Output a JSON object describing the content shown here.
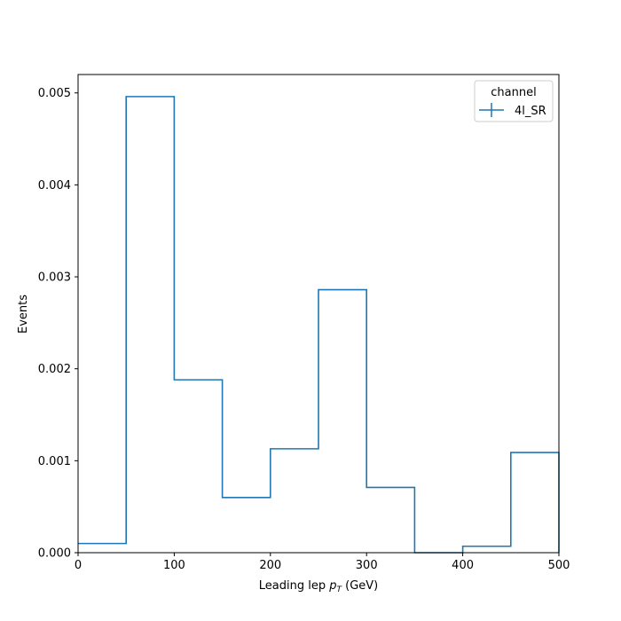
{
  "chart_data": {
    "type": "histogram-step",
    "xlabel_main": "Leading lep ",
    "xlabel_var": "p",
    "xlabel_sub": "T",
    "xlabel_unit": " (GeV)",
    "ylabel": "Events",
    "xlim": [
      0,
      500
    ],
    "ylim": [
      0,
      0.0052
    ],
    "bin_edges": [
      0,
      50,
      100,
      150,
      200,
      250,
      300,
      350,
      400,
      450,
      500
    ],
    "series": [
      {
        "name": "4l_SR",
        "color": "#1f77b4",
        "values": [
          0.0001,
          0.00496,
          0.00188,
          0.0006,
          0.00113,
          0.00286,
          0.00071,
          0.0,
          7e-05,
          0.00109
        ]
      }
    ],
    "xticks": [
      "0",
      "100",
      "200",
      "300",
      "400",
      "500"
    ],
    "xtick_values": [
      0,
      100,
      200,
      300,
      400,
      500
    ],
    "yticks": [
      "0.000",
      "0.001",
      "0.002",
      "0.003",
      "0.004",
      "0.005"
    ],
    "ytick_values": [
      0,
      0.001,
      0.002,
      0.003,
      0.004,
      0.005
    ],
    "legend": {
      "title": "channel",
      "placement": "top-right"
    },
    "grid": false
  }
}
